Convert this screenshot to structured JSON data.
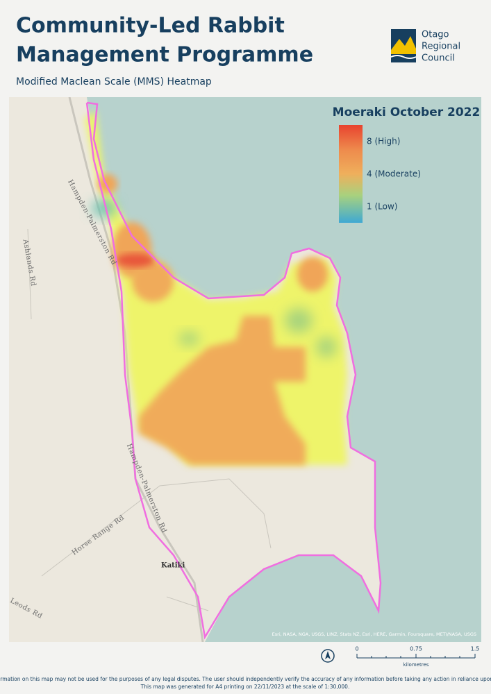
{
  "header": {
    "title_lines": [
      "Community-Led Rabbit",
      "Management Programme"
    ],
    "subtitle": "Modified Maclean Scale (MMS) Heatmap",
    "logo_lines": [
      "Otago",
      "Regional",
      "Council"
    ]
  },
  "legend": {
    "title": "Moeraki October 2022",
    "labels": [
      "8 (High)",
      "4 (Moderate)",
      "1 (Low)"
    ]
  },
  "map": {
    "road_labels": [
      "Hampden-Palmerston Rd",
      "Ashlands Rd",
      "Hampden-Palmerston Rd",
      "Horse Range Rd",
      "Leods Rd"
    ],
    "place_label": "Katiki",
    "attribution": "Esri, NASA, NGA, USGS, LINZ, Stats NZ, Esri, HERE, Garmin, Foursquare, METI/NASA, USGS"
  },
  "scale": {
    "ticks": [
      "0",
      "0.75",
      "1.5"
    ],
    "unit": "kilometres"
  },
  "footer": [
    "Information on this map may not be used for the purposes of any legal disputes. The user should independently verify the accuracy of any information before taking any action in reliance upon it.",
    "This map was generated for A4 printing on 22/11/2023 at the scale of 1:30,000."
  ]
}
